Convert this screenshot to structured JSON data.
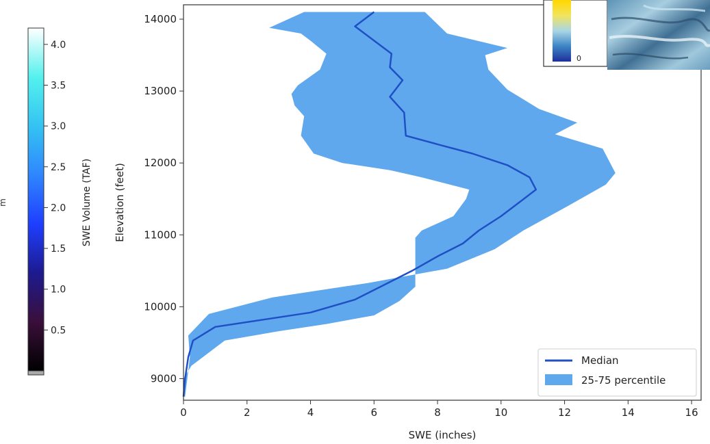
{
  "colorbar": {
    "label": "SWE Volume (TAF)",
    "ticks": [
      "4.0",
      "3.5",
      "3.0",
      "2.5",
      "2.0",
      "1.5",
      "1.0",
      "0.5"
    ],
    "tick_values": [
      4.0,
      3.5,
      3.0,
      2.5,
      2.0,
      1.5,
      1.0,
      0.5
    ],
    "range": [
      0.0,
      4.2
    ],
    "stops": [
      "#000000",
      "#3a0f3a",
      "#1d1a8f",
      "#1e3fff",
      "#2f86ff",
      "#34c3f2",
      "#54f1ee",
      "#ffffff"
    ],
    "side_letter": "m"
  },
  "inset": {
    "colorbar_label": "0",
    "stops": [
      "#1e2f9a",
      "#3d85c6",
      "#a9d6e5",
      "#f2e45c",
      "#ffd700"
    ]
  },
  "chart_data": {
    "type": "line",
    "xlabel": "SWE (inches)",
    "ylabel": "Elevation (feet)",
    "xlim": [
      0,
      16.3
    ],
    "ylim": [
      8700,
      14200
    ],
    "x_ticks": [
      0,
      2,
      4,
      6,
      8,
      10,
      12,
      14,
      16
    ],
    "y_ticks": [
      9000,
      10000,
      11000,
      12000,
      13000,
      14000
    ],
    "grid": false,
    "legend_position": "bottom-right",
    "series": [
      {
        "name": "Median",
        "color": "#1f4fc4",
        "points": [
          {
            "x": 0.0,
            "y": 8750
          },
          {
            "x": 0.05,
            "y": 9000
          },
          {
            "x": 0.15,
            "y": 9300
          },
          {
            "x": 0.3,
            "y": 9530
          },
          {
            "x": 1.0,
            "y": 9720
          },
          {
            "x": 2.5,
            "y": 9820
          },
          {
            "x": 4.0,
            "y": 9920
          },
          {
            "x": 5.4,
            "y": 10100
          },
          {
            "x": 6.3,
            "y": 10300
          },
          {
            "x": 7.2,
            "y": 10500
          },
          {
            "x": 8.0,
            "y": 10700
          },
          {
            "x": 8.8,
            "y": 10880
          },
          {
            "x": 9.3,
            "y": 11060
          },
          {
            "x": 10.0,
            "y": 11260
          },
          {
            "x": 10.6,
            "y": 11460
          },
          {
            "x": 11.1,
            "y": 11630
          },
          {
            "x": 10.9,
            "y": 11800
          },
          {
            "x": 10.2,
            "y": 11970
          },
          {
            "x": 9.1,
            "y": 12130
          },
          {
            "x": 8.0,
            "y": 12260
          },
          {
            "x": 7.0,
            "y": 12380
          },
          {
            "x": 6.95,
            "y": 12700
          },
          {
            "x": 6.5,
            "y": 12920
          },
          {
            "x": 6.9,
            "y": 13150
          },
          {
            "x": 6.5,
            "y": 13330
          },
          {
            "x": 6.55,
            "y": 13520
          },
          {
            "x": 5.4,
            "y": 13900
          },
          {
            "x": 6.0,
            "y": 14100
          }
        ]
      },
      {
        "name": "25-75 percentile",
        "type": "band",
        "color": "#5fa8ee",
        "lower": [
          {
            "x": 0.0,
            "y": 8750
          },
          {
            "x": 0.0,
            "y": 9000
          },
          {
            "x": 0.25,
            "y": 9180
          },
          {
            "x": 1.3,
            "y": 9530
          },
          {
            "x": 3.0,
            "y": 9660
          },
          {
            "x": 4.5,
            "y": 9760
          },
          {
            "x": 6.0,
            "y": 9880
          },
          {
            "x": 6.8,
            "y": 10080
          },
          {
            "x": 7.3,
            "y": 10280
          },
          {
            "x": 7.3,
            "y": 10700
          },
          {
            "x": 7.3,
            "y": 10960
          },
          {
            "x": 7.5,
            "y": 11060
          },
          {
            "x": 8.5,
            "y": 11260
          },
          {
            "x": 8.9,
            "y": 11500
          },
          {
            "x": 9.0,
            "y": 11630
          },
          {
            "x": 7.5,
            "y": 11800
          },
          {
            "x": 6.5,
            "y": 11900
          },
          {
            "x": 5.0,
            "y": 12000
          },
          {
            "x": 4.1,
            "y": 12130
          },
          {
            "x": 3.7,
            "y": 12380
          },
          {
            "x": 3.8,
            "y": 12650
          },
          {
            "x": 3.5,
            "y": 12800
          },
          {
            "x": 3.4,
            "y": 12960
          },
          {
            "x": 3.6,
            "y": 13080
          },
          {
            "x": 4.3,
            "y": 13300
          },
          {
            "x": 4.5,
            "y": 13520
          },
          {
            "x": 4.0,
            "y": 13700
          },
          {
            "x": 3.7,
            "y": 13800
          },
          {
            "x": 2.7,
            "y": 13880
          },
          {
            "x": 3.8,
            "y": 14100
          }
        ],
        "upper": [
          {
            "x": 0.05,
            "y": 8750
          },
          {
            "x": 0.12,
            "y": 9000
          },
          {
            "x": 0.2,
            "y": 9300
          },
          {
            "x": 0.15,
            "y": 9600
          },
          {
            "x": 0.8,
            "y": 9900
          },
          {
            "x": 2.8,
            "y": 10130
          },
          {
            "x": 5.8,
            "y": 10330
          },
          {
            "x": 8.3,
            "y": 10530
          },
          {
            "x": 9.8,
            "y": 10800
          },
          {
            "x": 10.7,
            "y": 11060
          },
          {
            "x": 12.1,
            "y": 11400
          },
          {
            "x": 13.3,
            "y": 11700
          },
          {
            "x": 13.6,
            "y": 11860
          },
          {
            "x": 13.2,
            "y": 12200
          },
          {
            "x": 11.7,
            "y": 12400
          },
          {
            "x": 12.4,
            "y": 12560
          },
          {
            "x": 11.2,
            "y": 12750
          },
          {
            "x": 10.2,
            "y": 13020
          },
          {
            "x": 9.6,
            "y": 13300
          },
          {
            "x": 9.5,
            "y": 13500
          },
          {
            "x": 10.2,
            "y": 13600
          },
          {
            "x": 8.3,
            "y": 13800
          },
          {
            "x": 7.6,
            "y": 14100
          }
        ]
      }
    ]
  }
}
